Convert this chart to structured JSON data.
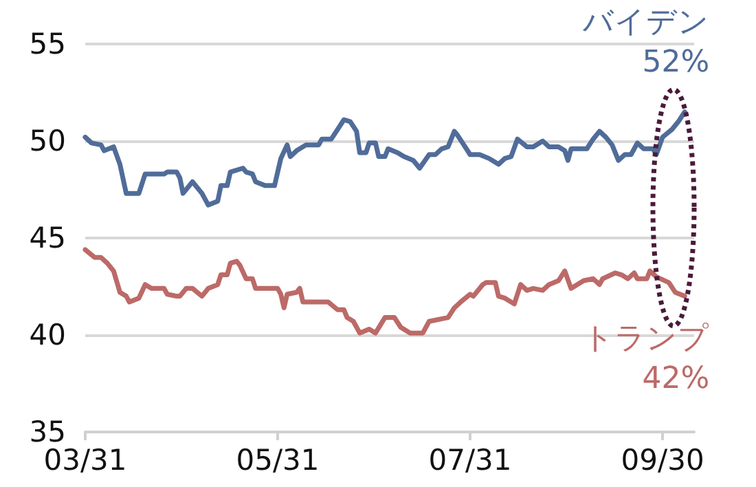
{
  "chart_data": {
    "type": "line",
    "x": [
      "--03-31",
      "--04-02",
      "--04-05",
      "--04-06",
      "--04-09",
      "--04-11",
      "--04-13",
      "--04-17",
      "--04-19",
      "--04-25",
      "--04-26",
      "--04-29",
      "--04-30",
      "--05-01",
      "--05-04",
      "--05-07",
      "--05-09",
      "--05-12",
      "--05-13",
      "--05-15",
      "--05-16",
      "--05-20",
      "--05-21",
      "--05-23",
      "--05-24",
      "--05-27",
      "--05-30",
      "--06-01",
      "--06-03",
      "--06-04",
      "--06-06",
      "--06-09",
      "--06-13",
      "--06-14",
      "--06-17",
      "--06-19",
      "--06-21",
      "--06-23",
      "--06-25",
      "--06-26",
      "--06-28",
      "--06-29",
      "--07-01",
      "--07-02",
      "--07-04",
      "--07-05",
      "--07-08",
      "--07-10",
      "--07-13",
      "--07-15",
      "--07-18",
      "--07-20",
      "--07-22",
      "--07-24",
      "--07-26",
      "--07-27",
      "--07-29",
      "--07-31",
      "--08-03",
      "--08-06",
      "--08-09",
      "--08-11",
      "--08-13",
      "--08-15",
      "--08-18",
      "--08-20",
      "--08-23",
      "--08-25",
      "--08-28",
      "--08-30",
      "--08-31",
      "--09-01",
      "--09-06",
      "--09-08",
      "--09-10",
      "--09-12",
      "--09-14",
      "--09-16",
      "--09-18",
      "--09-20",
      "--09-22",
      "--09-24",
      "--09-27",
      "--09-28",
      "--09-30",
      "--10-03",
      "--10-05",
      "--10-07"
    ],
    "series": [
      {
        "color": "#506c99",
        "values": [
          50.2,
          49.9,
          49.8,
          49.5,
          49.7,
          48.8,
          47.3,
          47.3,
          48.3,
          48.3,
          48.4,
          48.4,
          48.1,
          47.3,
          47.9,
          47.3,
          46.7,
          46.9,
          47.7,
          47.7,
          48.4,
          48.6,
          48.4,
          48.3,
          47.9,
          47.7,
          47.7,
          49.1,
          49.8,
          49.2,
          49.5,
          49.8,
          49.8,
          50.1,
          50.1,
          50.6,
          51.1,
          51.0,
          50.5,
          49.4,
          49.4,
          49.9,
          49.9,
          49.2,
          49.2,
          49.6,
          49.4,
          49.2,
          49.0,
          48.6,
          49.3,
          49.3,
          49.6,
          49.7,
          50.5,
          50.3,
          49.8,
          49.3,
          49.3,
          49.1,
          48.8,
          49.1,
          49.2,
          50.1,
          49.7,
          49.7,
          50.0,
          49.7,
          49.7,
          49.5,
          49.0,
          49.6,
          49.6,
          50.1,
          50.5,
          50.2,
          49.8,
          49.0,
          49.3,
          49.3,
          49.9,
          49.6,
          49.6,
          49.3,
          50.2,
          50.6,
          51.0,
          51.5
        ]
      },
      {
        "color": "#bc6a68",
        "x": [
          "--03-31",
          "--04-03",
          "--04-05",
          "--04-07",
          "--04-09",
          "--04-11",
          "--04-13",
          "--04-14",
          "--04-17",
          "--04-19",
          "--04-21",
          "--04-25",
          "--04-26",
          "--04-29",
          "--04-30",
          "--05-02",
          "--05-04",
          "--05-07",
          "--05-09",
          "--05-12",
          "--05-13",
          "--05-15",
          "--05-16",
          "--05-18",
          "--05-19",
          "--05-21",
          "--05-23",
          "--05-24",
          "--05-31",
          "--06-01",
          "--06-02",
          "--06-03",
          "--06-06",
          "--06-07",
          "--06-08",
          "--06-16",
          "--06-19",
          "--06-21",
          "--06-22",
          "--06-24",
          "--06-26",
          "--06-29",
          "--07-01",
          "--07-04",
          "--07-07",
          "--07-09",
          "--07-12",
          "--07-16",
          "--07-18",
          "--07-24",
          "--07-26",
          "--07-28",
          "--07-31",
          "--08-01",
          "--08-04",
          "--08-05",
          "--08-08",
          "--08-09",
          "--08-11",
          "--08-14",
          "--08-16",
          "--08-18",
          "--08-20",
          "--08-23",
          "--08-25",
          "--08-28",
          "--08-30",
          "--09-01",
          "--09-05",
          "--09-08",
          "--09-10",
          "--09-11",
          "--09-15",
          "--09-17",
          "--09-19",
          "--09-21",
          "--09-22",
          "--09-25",
          "--09-26",
          "--09-28",
          "--10-02",
          "--10-04",
          "--10-07"
        ],
        "values": [
          44.4,
          44.0,
          44.0,
          43.7,
          43.3,
          42.2,
          42.0,
          41.7,
          41.9,
          42.6,
          42.4,
          42.4,
          42.1,
          42.0,
          42.0,
          42.4,
          42.4,
          42.0,
          42.4,
          42.6,
          43.1,
          43.1,
          43.7,
          43.8,
          43.6,
          42.9,
          42.9,
          42.4,
          42.4,
          42.1,
          41.4,
          42.1,
          42.2,
          42.4,
          41.7,
          41.7,
          41.3,
          41.3,
          40.9,
          40.7,
          40.1,
          40.3,
          40.1,
          40.9,
          40.9,
          40.4,
          40.1,
          40.1,
          40.7,
          40.9,
          41.4,
          41.7,
          42.1,
          42.0,
          42.6,
          42.7,
          42.7,
          42.0,
          41.9,
          41.6,
          42.6,
          42.3,
          42.4,
          42.3,
          42.6,
          42.8,
          43.3,
          42.4,
          42.8,
          42.9,
          42.6,
          42.9,
          43.2,
          43.1,
          42.9,
          43.2,
          42.9,
          42.9,
          43.3,
          43.0,
          42.7,
          42.2,
          42.0
        ]
      }
    ],
    "xlim": [
      "--03-31",
      "--10-10"
    ],
    "xticks": [
      {
        "value": "--03-31",
        "label": "03/31"
      },
      {
        "value": "--05-31",
        "label": "05/31"
      },
      {
        "value": "--07-31",
        "label": "07/31"
      },
      {
        "value": "--09-30",
        "label": "09/30"
      }
    ],
    "ylim": [
      35,
      55
    ],
    "yticks": [
      35,
      40,
      45,
      50,
      55
    ],
    "grid": "y",
    "marker": "none",
    "line_style": "solid",
    "annotations": [
      {
        "text": "バイデン",
        "x": "--10-07",
        "y": 51.5
      },
      {
        "text": "52%",
        "x": "--10-07",
        "y": 51.5
      },
      {
        "text": "トランプ",
        "x": "--10-07",
        "y": 42.0
      },
      {
        "text": "42%",
        "x": "--10-07",
        "y": 42.0
      }
    ]
  }
}
